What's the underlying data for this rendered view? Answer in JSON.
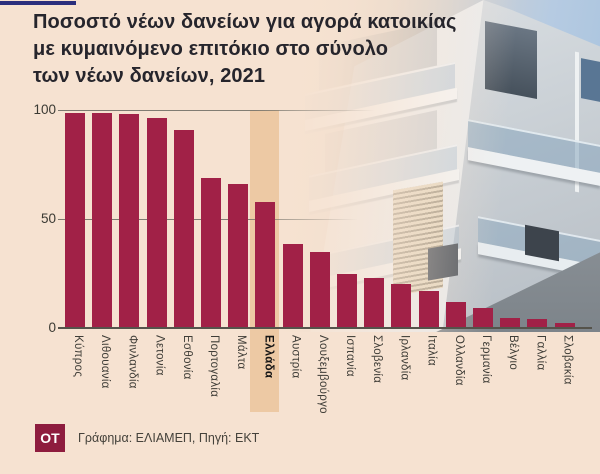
{
  "background_color": "#f6e2d1",
  "accent_color": "#2b2f7d",
  "title": {
    "line1": "Ποσοστό νέων δανείων για αγορά κατοικίας",
    "line2": "με κυμαινόμενο επιτόκιο στο σύνολο",
    "line3": "των νέων δανείων, 2021"
  },
  "chart_data": {
    "type": "bar",
    "title": "Ποσοστό νέων δανείων για αγορά κατοικίας με κυμαινόμενο επιτόκιο στο σύνολο των νέων δανείων, 2021",
    "categories": [
      "Κύπρος",
      "Λιθουανία",
      "Φινλανδία",
      "Λετονία",
      "Εσθονία",
      "Πορτογαλία",
      "Μάλτα",
      "Ελλάδα",
      "Αυστρία",
      "Λουξεμβούργο",
      "Ισπανία",
      "Σλοβενία",
      "Ιρλανδία",
      "Ιταλία",
      "Ολλανδία",
      "Γερμανία",
      "Βέλγιο",
      "Γαλλία",
      "Σλοβακία"
    ],
    "values": [
      98.5,
      98.5,
      98,
      96.5,
      91,
      69,
      66,
      58,
      38.5,
      35,
      25,
      23,
      20,
      17,
      12,
      9,
      4.5,
      4,
      2.5
    ],
    "highlight_index": 7,
    "highlight_category": "Ελλάδα",
    "xlabel": "",
    "ylabel": "",
    "ylim": [
      0,
      100
    ],
    "yticks": [
      0,
      50,
      100
    ],
    "grid": "horizontal",
    "legend": "none",
    "bar_color": "#a12147",
    "highlight_band_color": "#edc9a4"
  },
  "footer": {
    "logo_text": "OT",
    "logo_color": "#8e1c3e",
    "source_text": "Γράφημα: ΕΛΙΑΜΕΠ, Πηγή: ΕΚΤ"
  }
}
